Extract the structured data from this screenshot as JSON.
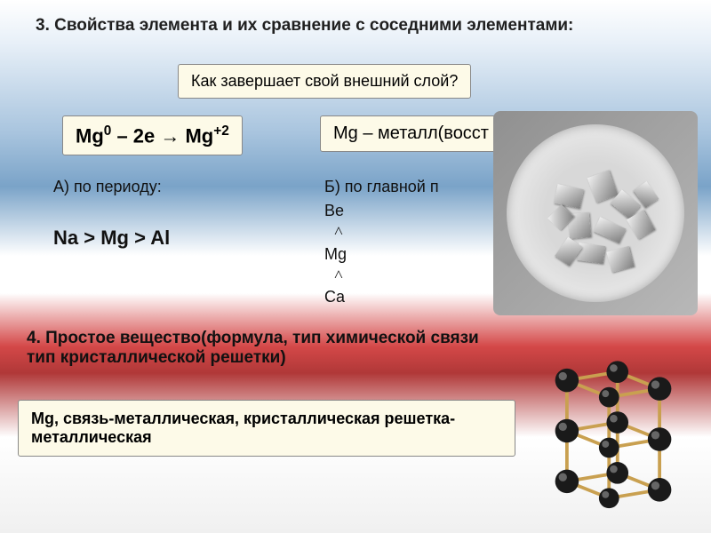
{
  "title": "3. Свойства элемента и их сравнение с соседними элементами:",
  "question_box": "Как завершает свой внешний слой?",
  "equation_html": "Mg<sup>0</sup> – 2e → Mg<sup>+2</sup>",
  "metal_box": "Mg – металл(восст",
  "period": {
    "label": "А) по периоду:",
    "sequence": "Na  >  Mg   >  Al"
  },
  "group": {
    "label": "Б) по главной п",
    "items": [
      "Be",
      "Mg",
      "Ca"
    ],
    "caret": "˄"
  },
  "section4": "4. Простое вещество(формула, тип химической связи тип кристаллической решетки)",
  "answer_box": "Mg, связь-металлическая, кристаллическая решетка- металлическая",
  "colors": {
    "box_bg": "#fdfae8",
    "box_border": "#888888",
    "text": "#202020",
    "lattice_atom": "#1a1a1a",
    "lattice_edge": "#c9a050",
    "lattice_edge_width": 4
  },
  "lattice": {
    "atoms": [
      [
        40,
        40,
        14
      ],
      [
        100,
        30,
        13
      ],
      [
        150,
        50,
        14
      ],
      [
        90,
        60,
        12
      ],
      [
        40,
        100,
        14
      ],
      [
        100,
        90,
        13
      ],
      [
        150,
        110,
        14
      ],
      [
        90,
        120,
        12
      ],
      [
        40,
        160,
        14
      ],
      [
        100,
        150,
        13
      ],
      [
        150,
        170,
        14
      ],
      [
        90,
        180,
        12
      ]
    ],
    "edges": [
      [
        40,
        40,
        100,
        30
      ],
      [
        100,
        30,
        150,
        50
      ],
      [
        150,
        50,
        90,
        60
      ],
      [
        90,
        60,
        40,
        40
      ],
      [
        40,
        100,
        100,
        90
      ],
      [
        100,
        90,
        150,
        110
      ],
      [
        150,
        110,
        90,
        120
      ],
      [
        90,
        120,
        40,
        100
      ],
      [
        40,
        160,
        100,
        150
      ],
      [
        100,
        150,
        150,
        170
      ],
      [
        150,
        170,
        90,
        180
      ],
      [
        90,
        180,
        40,
        160
      ],
      [
        40,
        40,
        40,
        160
      ],
      [
        100,
        30,
        100,
        150
      ],
      [
        150,
        50,
        150,
        170
      ],
      [
        90,
        60,
        90,
        180
      ]
    ]
  },
  "shards": [
    [
      55,
      70,
      30,
      22,
      12
    ],
    [
      95,
      55,
      26,
      30,
      -20
    ],
    [
      120,
      80,
      28,
      20,
      40
    ],
    [
      70,
      100,
      24,
      28,
      -5
    ],
    [
      100,
      110,
      32,
      18,
      25
    ],
    [
      140,
      100,
      22,
      26,
      -30
    ],
    [
      80,
      135,
      30,
      20,
      8
    ],
    [
      115,
      140,
      26,
      24,
      -15
    ],
    [
      60,
      130,
      20,
      26,
      35
    ],
    [
      145,
      70,
      24,
      18,
      55
    ],
    [
      50,
      95,
      22,
      20,
      -45
    ]
  ]
}
